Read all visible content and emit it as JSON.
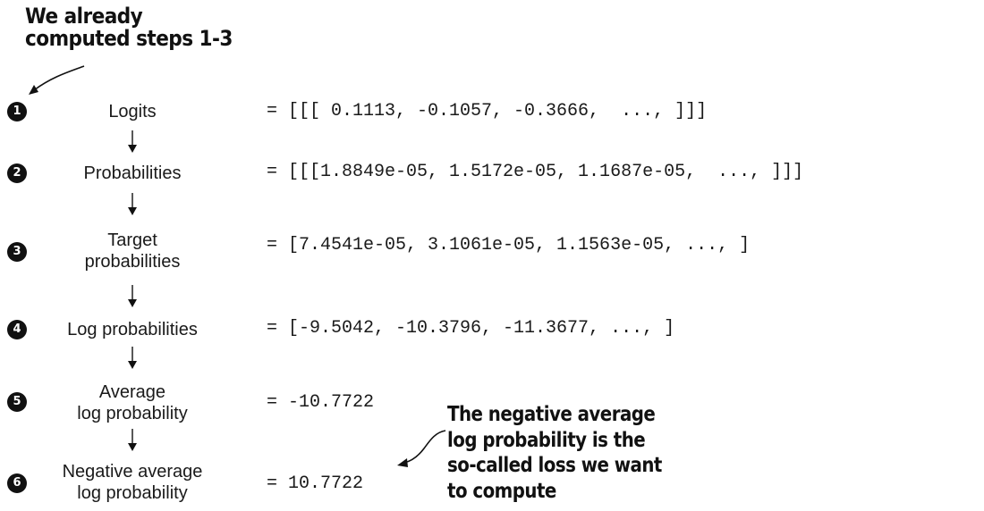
{
  "callout_top": {
    "lines": [
      "We already",
      "computed steps 1-3"
    ]
  },
  "callout_bottom": {
    "lines": [
      "The negative average",
      "log probability is the",
      "so-called loss we want",
      "to compute"
    ]
  },
  "steps": [
    {
      "number": "1",
      "label_lines": [
        "Logits"
      ],
      "value": "= [[[ 0.1113, -0.1057, -0.3666,  ..., ]]]"
    },
    {
      "number": "2",
      "label_lines": [
        "Probabilities"
      ],
      "value": "= [[[1.8849e-05, 1.5172e-05, 1.1687e-05,  ..., ]]]"
    },
    {
      "number": "3",
      "label_lines": [
        "Target",
        "probabilities"
      ],
      "value": "= [7.4541e-05, 3.1061e-05, 1.1563e-05, ..., ]"
    },
    {
      "number": "4",
      "label_lines": [
        "Log probabilities"
      ],
      "value": "= [-9.5042, -10.3796, -11.3677, ..., ]"
    },
    {
      "number": "5",
      "label_lines": [
        "Average",
        "log probability"
      ],
      "value": "= -10.7722"
    },
    {
      "number": "6",
      "label_lines": [
        "Negative average",
        "log probability"
      ],
      "value": "= 10.7722"
    }
  ],
  "colors": {
    "ink": "#111111",
    "text": "#1a1a1a",
    "badge_text": "#ffffff",
    "background": "#ffffff"
  },
  "icons": {
    "step_badge": "filled-circle-number",
    "flow_connector": "down-arrow",
    "callout_pointer": "curved-arrow"
  }
}
